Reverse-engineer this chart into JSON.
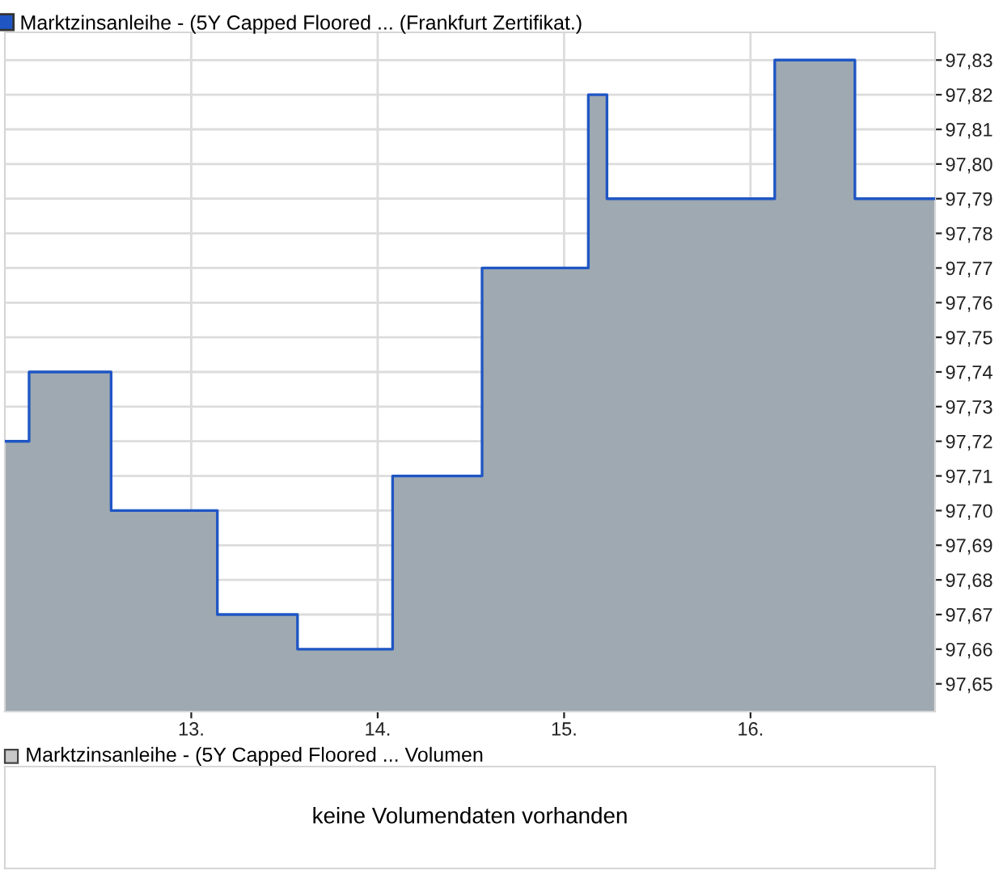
{
  "chart_data": [
    {
      "type": "step",
      "x": [
        12.0,
        12.13,
        12.57,
        13.14,
        13.57,
        14.08,
        14.56,
        15.13,
        15.23,
        16.13,
        16.56,
        16.99
      ],
      "series": [
        {
          "name": "Marktzinsanleihe - (5Y Capped Floored ... (Frankfurt Zertifikat.)",
          "color": "#1f56c4",
          "values": [
            97.72,
            97.74,
            97.7,
            97.67,
            97.66,
            97.71,
            97.77,
            97.82,
            97.79,
            97.83,
            97.79,
            97.79
          ]
        },
        {
          "type": "area",
          "color": "#9ea9b1",
          "values": [
            97.72,
            97.74,
            97.7,
            97.67,
            97.66,
            97.71,
            97.77,
            97.82,
            97.79,
            97.83,
            97.79,
            97.79
          ]
        }
      ],
      "xlim": [
        12.0,
        16.99
      ],
      "xticks": [
        {
          "value": 13,
          "label": "13."
        },
        {
          "value": 14,
          "label": "14."
        },
        {
          "value": 15,
          "label": "15."
        },
        {
          "value": 16,
          "label": "16."
        }
      ],
      "ylim": [
        97.642,
        97.838
      ],
      "yticks": [
        {
          "value": 97.65,
          "label": "97,65"
        },
        {
          "value": 97.66,
          "label": "97,66"
        },
        {
          "value": 97.67,
          "label": "97,67"
        },
        {
          "value": 97.68,
          "label": "97,68"
        },
        {
          "value": 97.69,
          "label": "97,69"
        },
        {
          "value": 97.7,
          "label": "97,70"
        },
        {
          "value": 97.71,
          "label": "97,71"
        },
        {
          "value": 97.72,
          "label": "97,72"
        },
        {
          "value": 97.73,
          "label": "97,73"
        },
        {
          "value": 97.74,
          "label": "97,74"
        },
        {
          "value": 97.75,
          "label": "97,75"
        },
        {
          "value": 97.76,
          "label": "97,76"
        },
        {
          "value": 97.77,
          "label": "97,77"
        },
        {
          "value": 97.78,
          "label": "97,78"
        },
        {
          "value": 97.79,
          "label": "97,79"
        },
        {
          "value": 97.8,
          "label": "97,80"
        },
        {
          "value": 97.81,
          "label": "97,81"
        },
        {
          "value": 97.82,
          "label": "97,82"
        },
        {
          "value": 97.83,
          "label": "97,83"
        }
      ],
      "grid": true,
      "legend": "top left"
    },
    {
      "type": "other",
      "title": "Marktzinsanleihe - (5Y Capped Floored ... Volumen",
      "annotations": [
        "keine Volumendaten vorhanden"
      ]
    }
  ]
}
